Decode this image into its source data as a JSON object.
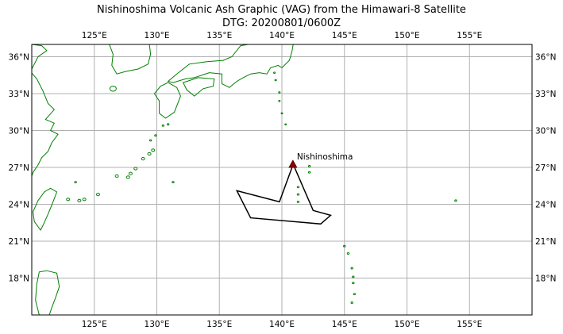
{
  "title": {
    "line1": "Nishinoshima Volcanic Ash Graphic (VAG) from the Himawari-8 Satellite",
    "line2": "DTG: 20200801/0600Z"
  },
  "map": {
    "lon_range": [
      120,
      160
    ],
    "lat_range": [
      15,
      37
    ],
    "grid": true,
    "lon_ticks": [
      125,
      130,
      135,
      140,
      145,
      150,
      155
    ],
    "lat_ticks": [
      18,
      21,
      24,
      27,
      30,
      33,
      36
    ],
    "lon_tick_labels": [
      "125°E",
      "130°E",
      "135°E",
      "140°E",
      "145°E",
      "150°E",
      "155°E"
    ],
    "lat_tick_labels": [
      "18°N",
      "21°N",
      "24°N",
      "27°N",
      "30°N",
      "33°N",
      "36°N"
    ],
    "coastline_color": "#008000",
    "gridline_color": "#b0b0b0"
  },
  "volcano": {
    "name": "Nishinoshima",
    "lon": 140.88,
    "lat": 27.25,
    "marker_color": "#8b0000"
  },
  "ash_polygon": {
    "color": "#000000",
    "points": [
      [
        140.9,
        27.25
      ],
      [
        142.5,
        23.5
      ],
      [
        143.9,
        23.1
      ],
      [
        143.1,
        22.4
      ],
      [
        137.5,
        22.9
      ],
      [
        136.4,
        25.1
      ],
      [
        139.8,
        24.2
      ],
      [
        140.9,
        27.25
      ]
    ]
  }
}
